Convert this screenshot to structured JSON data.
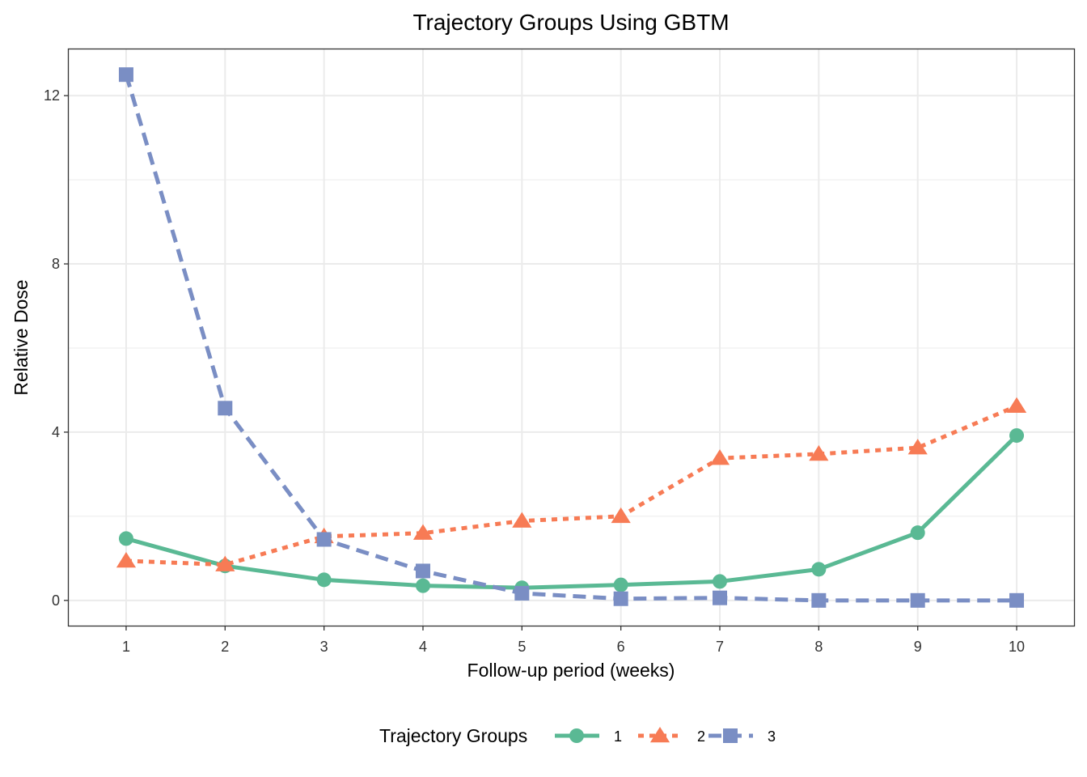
{
  "chart_data": {
    "type": "line",
    "title": "Trajectory Groups Using GBTM",
    "xlabel": "Follow-up period (weeks)",
    "ylabel": "Relative Dose",
    "x": [
      1,
      2,
      3,
      4,
      5,
      6,
      7,
      8,
      9,
      10
    ],
    "x_ticks": [
      "1",
      "2",
      "3",
      "4",
      "5",
      "6",
      "7",
      "8",
      "9",
      "10"
    ],
    "y_ticks": [
      "0",
      "4",
      "8",
      "12"
    ],
    "xlim": [
      0.42,
      10.58
    ],
    "ylim": [
      -0.6,
      13.1
    ],
    "grid": true,
    "legend": {
      "title": "Trajectory Groups",
      "position": "bottom"
    },
    "series": [
      {
        "name": "1",
        "color": "#5ab994",
        "marker": "circle",
        "linestyle": "solid",
        "values": [
          1.47,
          0.82,
          0.49,
          0.35,
          0.3,
          0.37,
          0.45,
          0.74,
          1.61,
          3.92
        ]
      },
      {
        "name": "2",
        "color": "#f77b55",
        "marker": "triangle",
        "linestyle": "dotted",
        "values": [
          0.94,
          0.85,
          1.52,
          1.6,
          1.89,
          2.0,
          3.38,
          3.48,
          3.63,
          4.62
        ]
      },
      {
        "name": "3",
        "color": "#7a8ec4",
        "marker": "square",
        "linestyle": "dashed",
        "values": [
          12.5,
          4.57,
          1.45,
          0.7,
          0.17,
          0.04,
          0.06,
          0.0,
          0.0,
          0.0
        ]
      }
    ]
  }
}
